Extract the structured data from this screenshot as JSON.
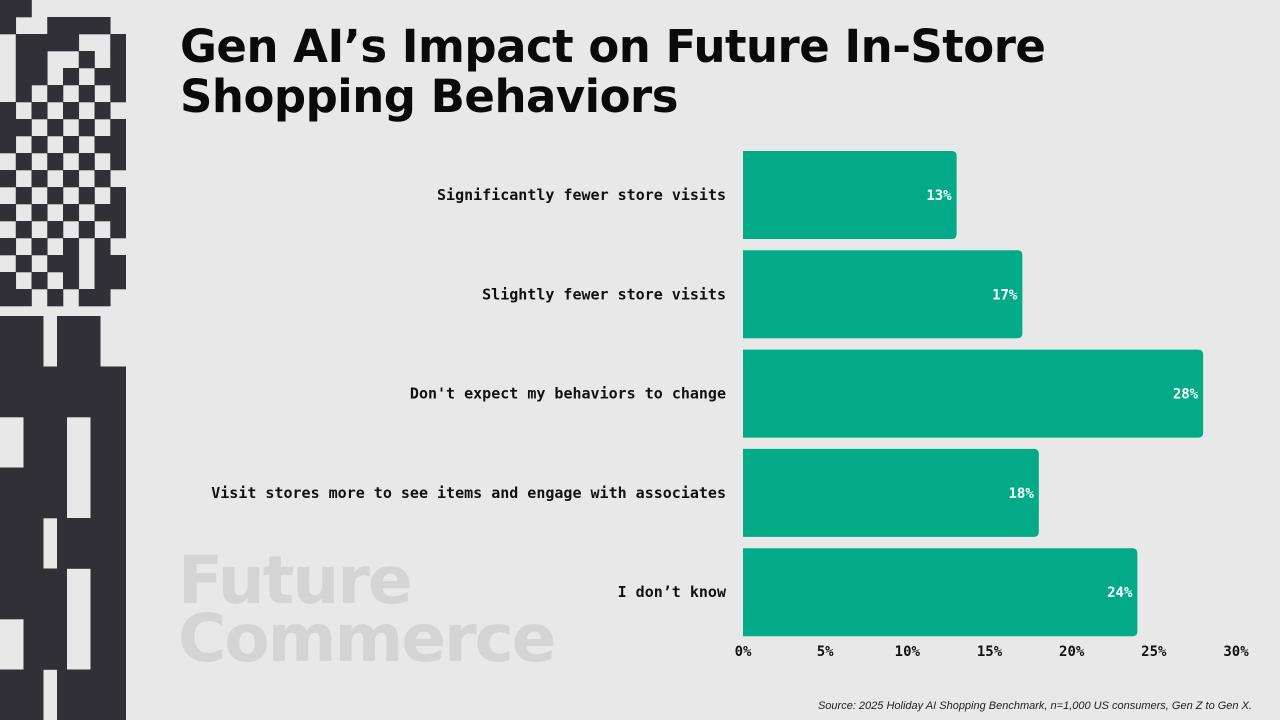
{
  "title_lines": [
    "Gen AI’s Impact on Future In-Store",
    "Shopping Behaviors"
  ],
  "watermark_lines": [
    "Future",
    "Commerce"
  ],
  "source": "Source: 2025 Holiday AI Shopping Benchmark, n=1,000 US consumers, Gen Z to Gen X.",
  "colors": {
    "background": "#e8e8e8",
    "bar": "#03aa88",
    "pattern": "#303036",
    "watermark": "#d4d4d4"
  },
  "chart_data": {
    "type": "bar",
    "orientation": "horizontal",
    "title": "Gen AI’s Impact on Future In-Store Shopping Behaviors",
    "categories": [
      "Significantly fewer store visits",
      "Slightly fewer store visits",
      "Don't expect my behaviors to change",
      "Visit stores more to see items and engage with associates",
      "I don’t know"
    ],
    "values": [
      13,
      17,
      28,
      18,
      24
    ],
    "value_labels": [
      "13%",
      "17%",
      "28%",
      "18%",
      "24%"
    ],
    "xlim": [
      0,
      30
    ],
    "xticks": [
      0,
      5,
      10,
      15,
      20,
      25,
      30
    ],
    "xtick_labels": [
      "0%",
      "5%",
      "10%",
      "15%",
      "20%",
      "25%",
      "30%"
    ],
    "xlabel": "",
    "ylabel": "",
    "grid": false
  }
}
